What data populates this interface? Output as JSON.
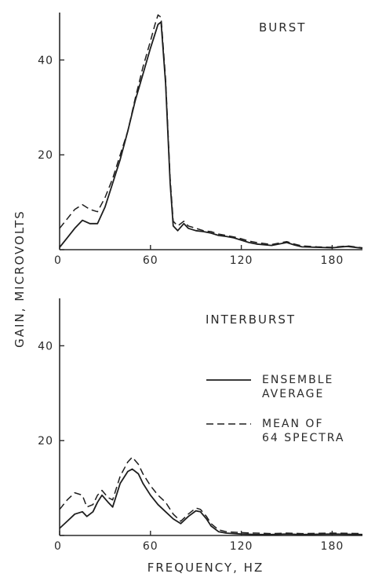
{
  "chart_data": [
    {
      "type": "line",
      "title": "BURST",
      "xlabel": "FREQUENCY, HZ",
      "ylabel": "GAIN, MICROVOLTS",
      "xlim": [
        0,
        200
      ],
      "ylim": [
        0,
        50
      ],
      "xticks": [
        0,
        60,
        120,
        180
      ],
      "yticks": [
        0,
        20,
        40
      ],
      "grid": false,
      "series": [
        {
          "name": "ENSEMBLE AVERAGE",
          "style": "solid",
          "x": [
            0,
            5,
            10,
            15,
            20,
            25,
            30,
            35,
            40,
            45,
            50,
            55,
            60,
            63,
            65,
            67,
            70,
            73,
            75,
            78,
            82,
            85,
            90,
            95,
            100,
            105,
            110,
            115,
            120,
            125,
            130,
            140,
            150,
            155,
            160,
            170,
            180,
            190,
            200
          ],
          "y": [
            0.5,
            2.5,
            4.5,
            6.2,
            5.5,
            5.5,
            9,
            14,
            19,
            25,
            31.5,
            37,
            42.5,
            45.5,
            47.5,
            48,
            35,
            14,
            5,
            4,
            5.5,
            4.5,
            4,
            3.8,
            3.5,
            3,
            2.8,
            2.5,
            2,
            1.5,
            1.2,
            0.9,
            1.5,
            1.0,
            0.6,
            0.5,
            0.4,
            0.7,
            0.3
          ]
        },
        {
          "name": "MEAN OF 64 SPECTRA",
          "style": "dashed",
          "x": [
            0,
            5,
            10,
            15,
            20,
            25,
            30,
            35,
            40,
            45,
            50,
            55,
            60,
            63,
            65,
            67,
            70,
            73,
            75,
            78,
            82,
            85,
            90,
            95,
            100,
            105,
            110,
            115,
            120,
            125,
            130,
            140,
            150,
            155,
            160,
            170,
            180,
            190,
            200
          ],
          "y": [
            4.5,
            6.5,
            8.5,
            9.5,
            8.5,
            8,
            11,
            15,
            20,
            25,
            32,
            38.5,
            44,
            47.5,
            49.5,
            49,
            36,
            15,
            6,
            5,
            6,
            5,
            4.5,
            4,
            3.8,
            3.3,
            3,
            2.7,
            2.3,
            1.8,
            1.5,
            1.1,
            1.7,
            1.2,
            0.8,
            0.6,
            0.5,
            0.8,
            0.4
          ]
        }
      ]
    },
    {
      "type": "line",
      "title": "INTERBURST",
      "xlabel": "FREQUENCY, HZ",
      "ylabel": "GAIN, MICROVOLTS",
      "xlim": [
        0,
        200
      ],
      "ylim": [
        0,
        50
      ],
      "xticks": [
        0,
        60,
        120,
        180
      ],
      "yticks": [
        0,
        20,
        40
      ],
      "grid": false,
      "series": [
        {
          "name": "ENSEMBLE AVERAGE",
          "style": "solid",
          "x": [
            0,
            5,
            10,
            15,
            18,
            22,
            25,
            28,
            32,
            35,
            40,
            45,
            48,
            52,
            55,
            60,
            65,
            70,
            75,
            80,
            85,
            90,
            93,
            97,
            100,
            105,
            110,
            120,
            130,
            140,
            150,
            160,
            180,
            200
          ],
          "y": [
            1.5,
            3,
            4.5,
            5,
            4,
            5,
            7,
            8.5,
            7,
            6,
            11,
            13.5,
            14,
            13,
            11,
            8.5,
            6.5,
            5,
            3.5,
            2.5,
            4,
            5.2,
            5,
            3.5,
            2,
            0.8,
            0.5,
            0.3,
            0.2,
            0.2,
            0.3,
            0.2,
            0.3,
            0.2
          ]
        },
        {
          "name": "MEAN OF 64 SPECTRA",
          "style": "dashed",
          "x": [
            0,
            5,
            10,
            15,
            18,
            22,
            25,
            28,
            32,
            35,
            40,
            45,
            48,
            52,
            55,
            60,
            65,
            70,
            75,
            80,
            85,
            90,
            93,
            97,
            100,
            105,
            110,
            120,
            130,
            140,
            150,
            160,
            180,
            200
          ],
          "y": [
            5.5,
            7.5,
            9,
            8.5,
            6,
            6.5,
            8.5,
            9.5,
            8,
            7.5,
            12.5,
            15.5,
            16.5,
            15,
            13,
            10.5,
            8.5,
            7,
            4.5,
            3,
            4.5,
            5.8,
            5.5,
            4,
            2.5,
            1.2,
            0.8,
            0.6,
            0.5,
            0.4,
            0.5,
            0.4,
            0.5,
            0.4
          ]
        }
      ],
      "legend": {
        "placement": "right",
        "entries": [
          {
            "style": "solid",
            "lines": [
              "ENSEMBLE",
              "AVERAGE"
            ]
          },
          {
            "style": "dashed",
            "lines": [
              "MEAN OF",
              "64 SPECTRA"
            ]
          }
        ]
      }
    }
  ]
}
